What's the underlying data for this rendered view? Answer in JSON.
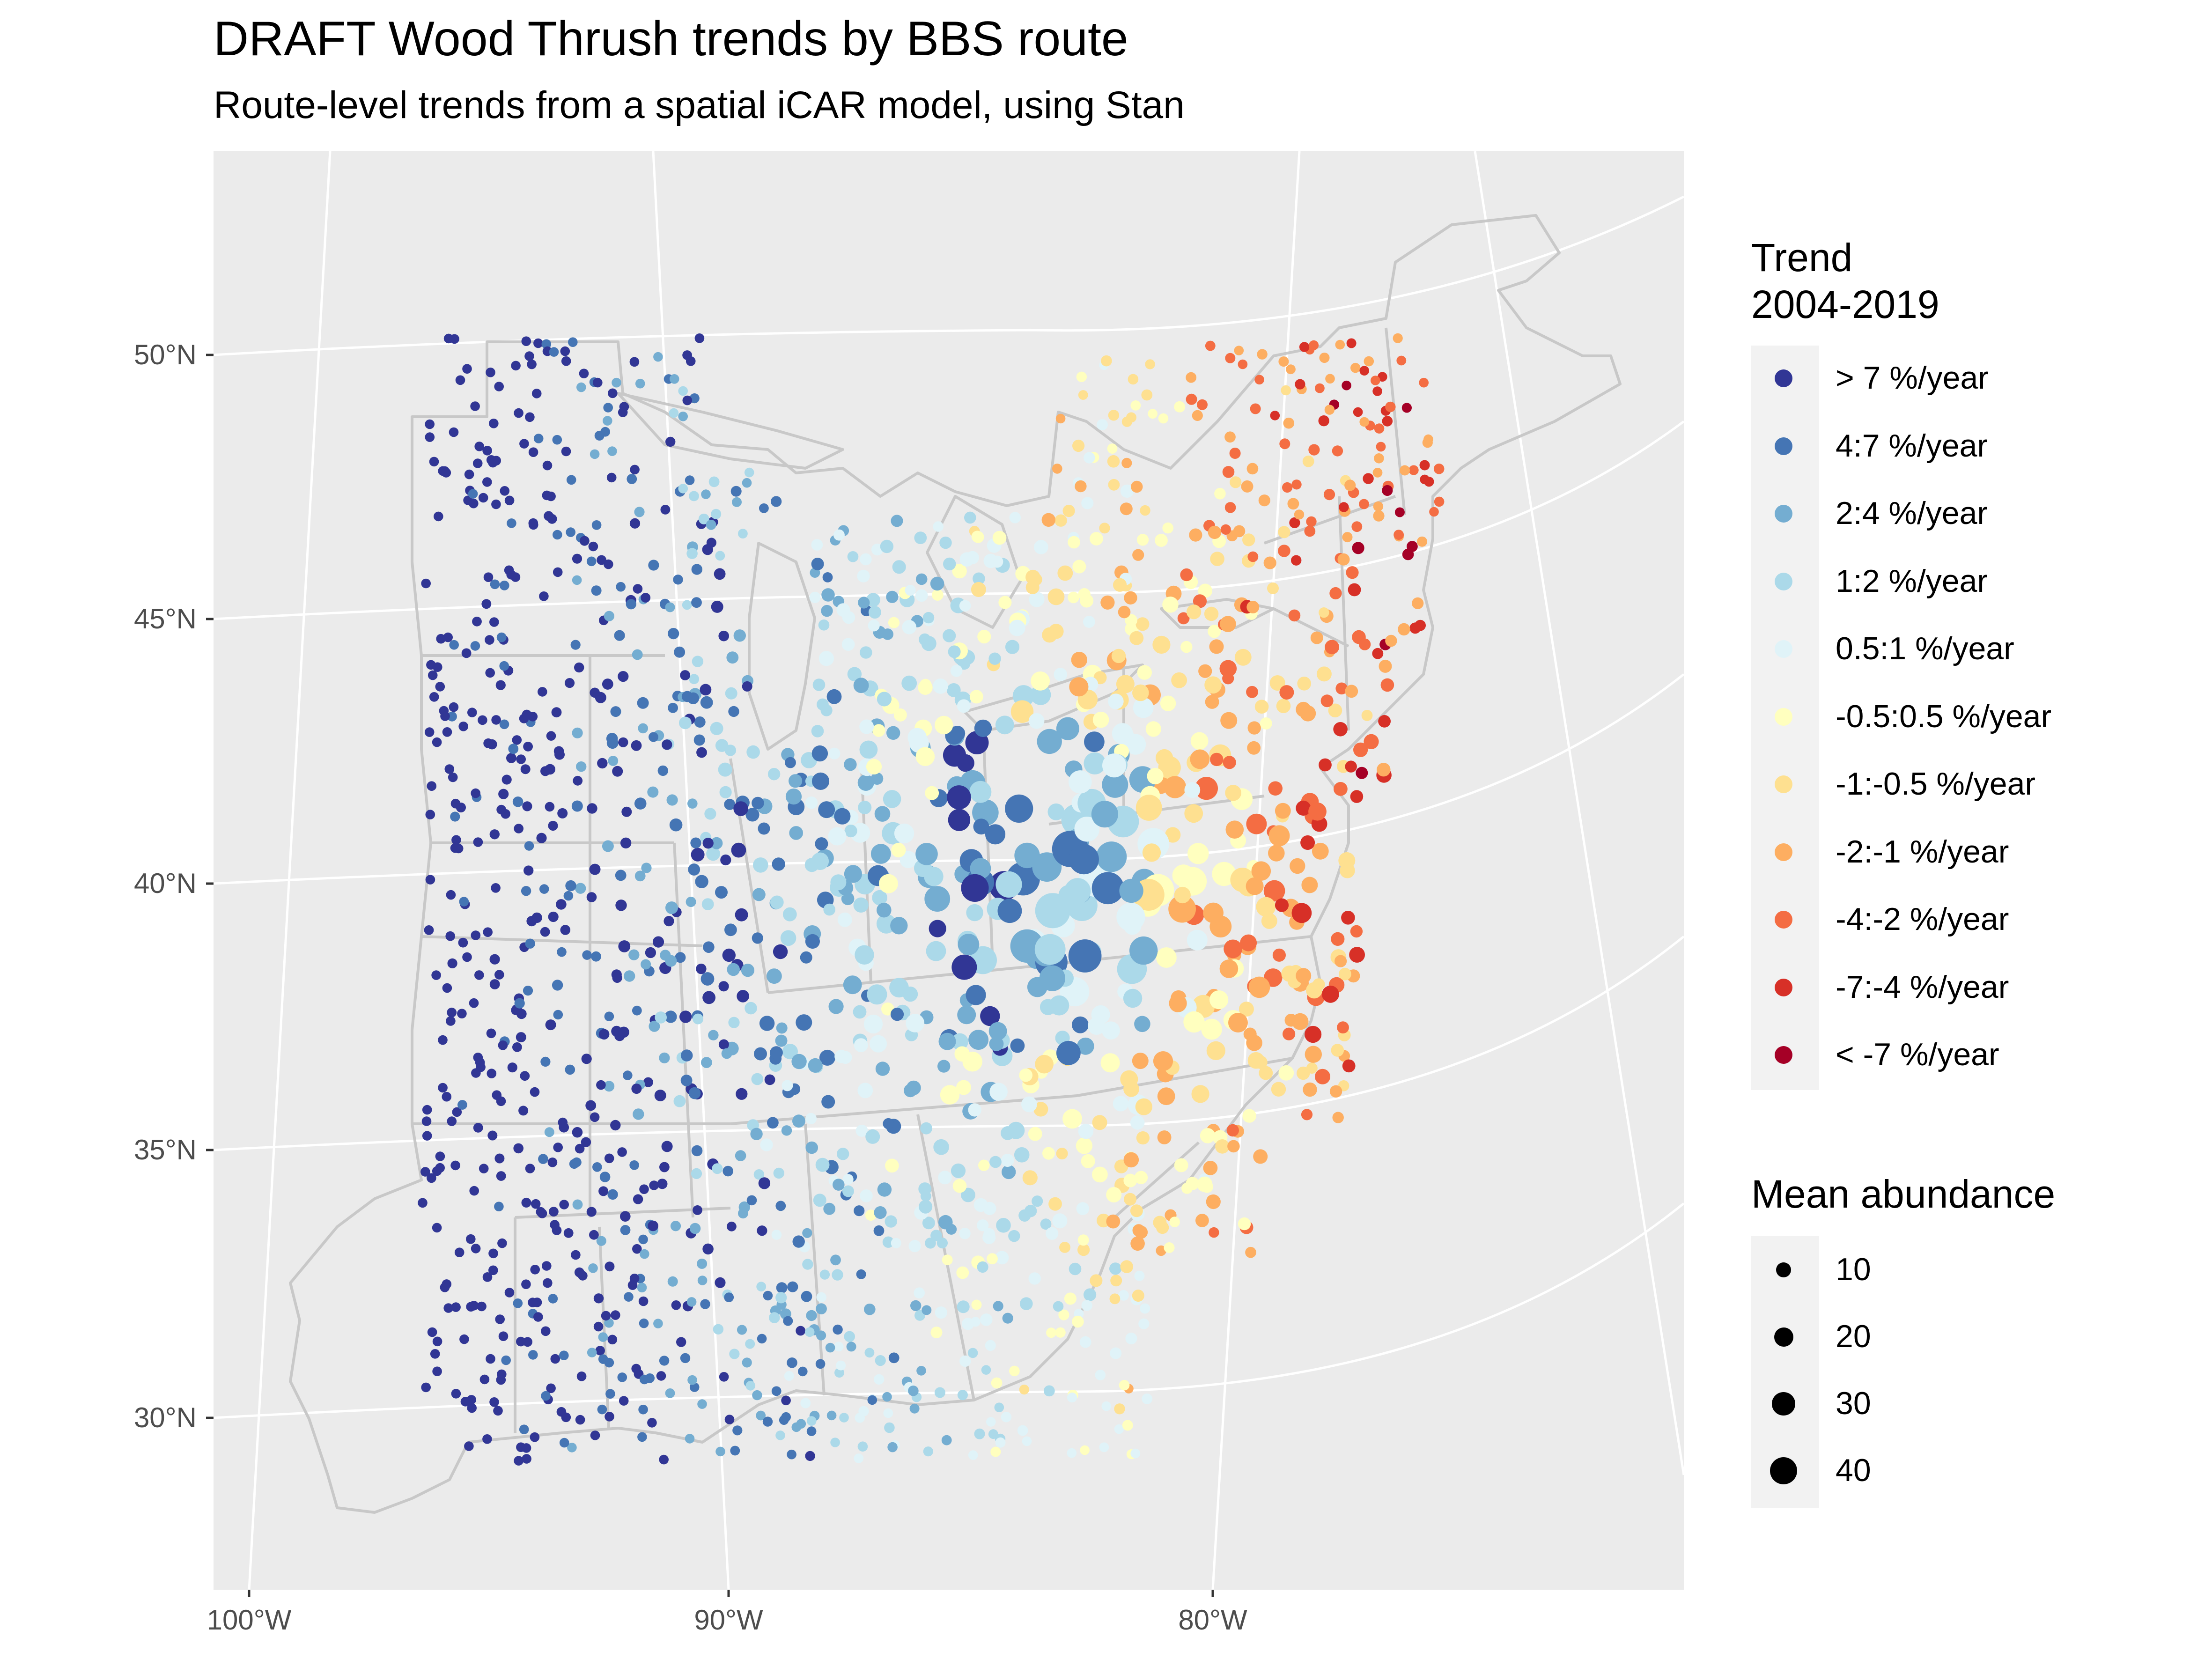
{
  "title": "DRAFT  Wood Thrush trends by BBS route",
  "subtitle": "Route-level trends from a spatial iCAR model, using Stan",
  "map": {
    "lat_labels": [
      "50°N",
      "45°N",
      "40°N",
      "35°N",
      "30°N"
    ],
    "lon_labels": [
      "100°W",
      "90°W",
      "80°W"
    ],
    "colors": {
      "panel_background": "#ebebeb",
      "graticule": "#ffffff",
      "boundaries": "#c8c8c8"
    },
    "routes": {
      "seed": 20042019,
      "count": 1800
    }
  },
  "legend_trend": {
    "title_line1": "Trend",
    "title_line2": "2004-2019",
    "items": [
      {
        "label": "> 7 %/year",
        "color": "#313695"
      },
      {
        "label": "4:7 %/year",
        "color": "#4575b4"
      },
      {
        "label": "2:4 %/year",
        "color": "#74add1"
      },
      {
        "label": "1:2 %/year",
        "color": "#abd9e9"
      },
      {
        "label": "0.5:1 %/year",
        "color": "#e0f3f8"
      },
      {
        "label": "-0.5:0.5 %/year",
        "color": "#ffffbf"
      },
      {
        "label": "-1:-0.5 %/year",
        "color": "#fee090"
      },
      {
        "label": "-2:-1 %/year",
        "color": "#fdae61"
      },
      {
        "label": "-4:-2 %/year",
        "color": "#f46d43"
      },
      {
        "label": "-7:-4 %/year",
        "color": "#d73027"
      },
      {
        "label": "< -7 %/year",
        "color": "#a50026"
      }
    ]
  },
  "legend_abundance": {
    "title": "Mean abundance",
    "items": [
      {
        "label": "10",
        "value": 10
      },
      {
        "label": "20",
        "value": 20
      },
      {
        "label": "30",
        "value": 30
      },
      {
        "label": "40",
        "value": 40
      }
    ]
  }
}
